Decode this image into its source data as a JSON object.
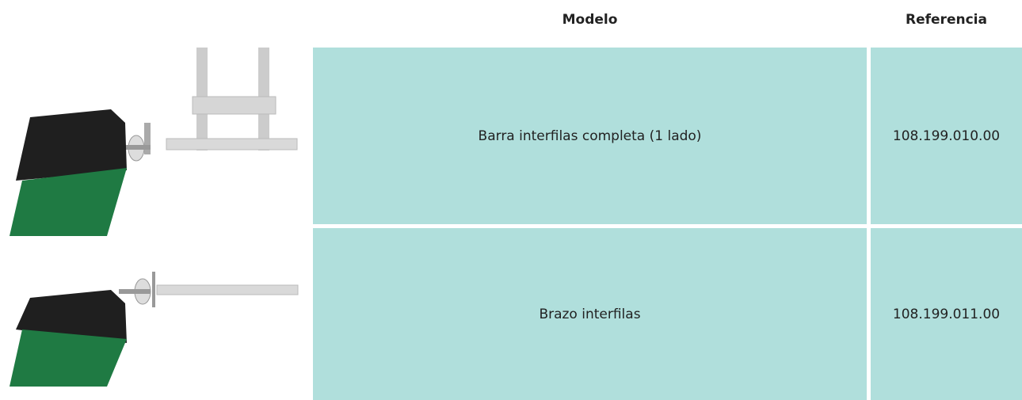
{
  "table": {
    "headers": [
      "Modelo",
      "Referencia"
    ],
    "rows": [
      [
        "Barra interfilas completa (1 lado)",
        "108.199.010.00"
      ],
      [
        "Brazo interfilas",
        "108.199.011.00"
      ]
    ]
  }
}
